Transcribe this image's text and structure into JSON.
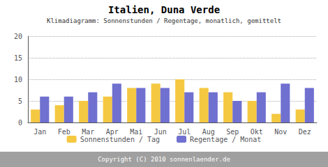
{
  "chart_data": {
    "type": "bar",
    "title": "Italien, Duna Verde",
    "subtitle": "Klimadiagramm: Sonnenstunden / Regentage, monatlich, gemittelt",
    "annotation": "Copyright (C) 2010 sonnenlaender.de",
    "categories": [
      "Jan",
      "Feb",
      "Mar",
      "Apr",
      "Mai",
      "Jun",
      "Jul",
      "Aug",
      "Sep",
      "Okt",
      "Nov",
      "Dez"
    ],
    "series": [
      {
        "name": "Sonnenstunden / Tag",
        "color": "#F5C842",
        "values": [
          3,
          4,
          5,
          6,
          8,
          9,
          10,
          8,
          7,
          5,
          2,
          3
        ]
      },
      {
        "name": "Regentage / Monat",
        "color": "#7070D0",
        "values": [
          6,
          6,
          7,
          9,
          8,
          8,
          7,
          7,
          5,
          7,
          9,
          8
        ]
      }
    ],
    "ylim": [
      0,
      20
    ],
    "yticks": [
      0,
      5,
      10,
      15,
      20
    ],
    "grid": true,
    "legend": "bottom"
  }
}
